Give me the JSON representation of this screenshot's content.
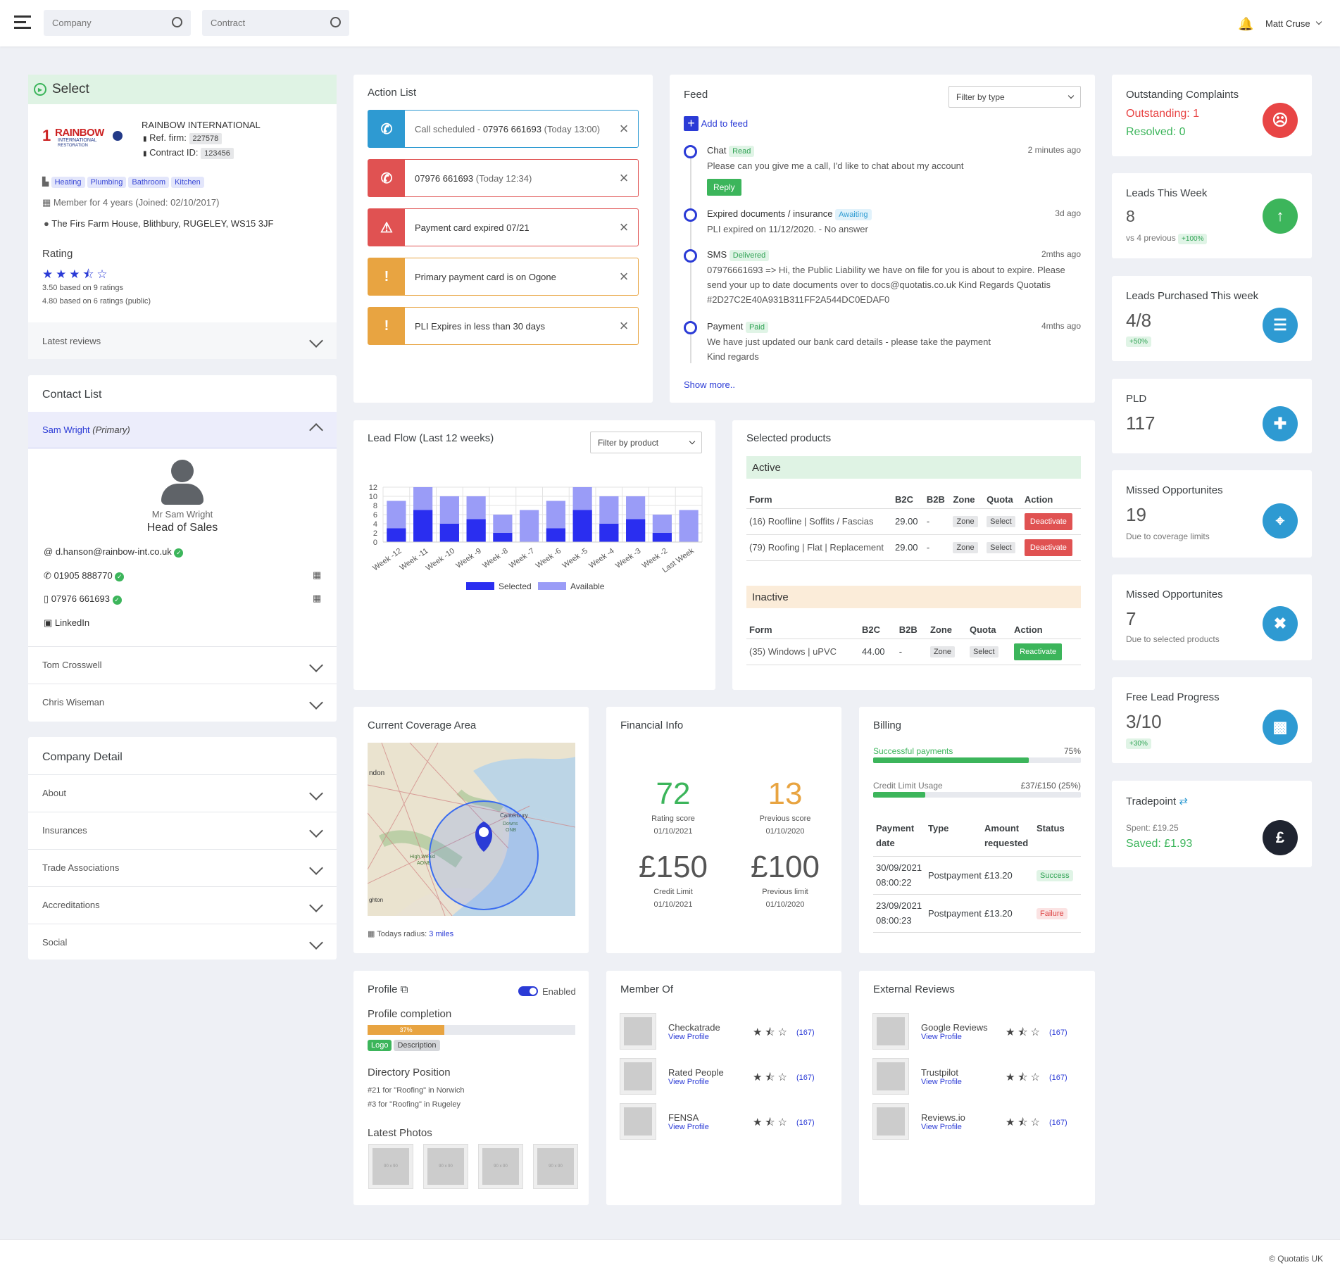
{
  "header": {
    "company_placeholder": "Company",
    "contract_placeholder": "Contract",
    "user": "Matt Cruse"
  },
  "select": {
    "title": "Select",
    "company": "RAINBOW INTERNATIONAL",
    "ref_label": "Ref. firm:",
    "ref": "227578",
    "contract_label": "Contract ID:",
    "contract": "123456",
    "tags": [
      "Heating",
      "Plumbing",
      "Bathroom",
      "Kitchen"
    ],
    "member": "Member for 4 years (Joined: 02/10/2017)",
    "address": "The Firs Farm House, Blithbury, RUGELEY, WS15 3JF",
    "rating_title": "Rating",
    "rating_stars": 3.5,
    "r1": "3.50 based on 9 ratings",
    "r2": "4.80 based on 6 ratings (public)",
    "latest_reviews": "Latest reviews",
    "logo_text": "RAINBOW",
    "logo_sub": "INTERNATIONAL",
    "logo_sub2": "RESTORATION"
  },
  "contacts": {
    "title": "Contact List",
    "primary_name": "Sam Wright",
    "primary_tag": "(Primary)",
    "person": "Mr Sam Wright",
    "role": "Head of Sales",
    "email": "d.hanson@rainbow-int.co.uk",
    "phone1": "01905 888770",
    "phone2": "07976 661693",
    "linkedin": "LinkedIn",
    "others": [
      "Tom Crosswell",
      "Chris Wiseman"
    ]
  },
  "company_detail": {
    "title": "Company Detail",
    "items": [
      "About",
      "Insurances",
      "Trade Associations",
      "Accreditations",
      "Social"
    ]
  },
  "action_list": {
    "title": "Action List",
    "items": [
      {
        "text": "Call scheduled - ",
        "bold": "07976 661693",
        "muted": "(Today 13:00)"
      },
      {
        "text": "",
        "bold": "07976 661693",
        "muted": "(Today 12:34)"
      },
      {
        "text": "Payment card expired 07/21",
        "bold": "",
        "muted": ""
      },
      {
        "text": "Primary payment card is on Ogone",
        "bold": "",
        "muted": ""
      },
      {
        "text": "PLI Expires in less than 30 days",
        "bold": "",
        "muted": ""
      }
    ]
  },
  "feed": {
    "title": "Feed",
    "filter": "Filter by type",
    "add": "Add to feed",
    "show_more": "Show more..",
    "items": [
      {
        "title": "Chat",
        "tag": "Read",
        "time": "2 minutes ago",
        "body": "Please can you give me a call, I'd like to chat about my account",
        "reply": "Reply"
      },
      {
        "title": "Expired documents / insurance",
        "tag": "Awaiting",
        "time": "3d ago",
        "body": "PLI expired on 11/12/2020. - No answer"
      },
      {
        "title": "SMS",
        "tag": "Delivered",
        "time": "2mths ago",
        "body": "07976661693 => Hi, the Public Liability we have on file for you is about to expire. Please send your up to date documents over to docs@quotatis.co.uk Kind Regards Quotatis #2D27C2E40A931B311FF2A544DC0EDAF0"
      },
      {
        "title": "Payment",
        "tag": "Paid",
        "time": "4mths ago",
        "body": "We have just updated our bank card details - please take the payment",
        "body2": "Kind regards"
      }
    ]
  },
  "stats": [
    {
      "title": "Outstanding Complaints",
      "l1": "Outstanding: 1",
      "l2": "Resolved: 0",
      "color": "#e84545"
    },
    {
      "title": "Leads This Week",
      "value": "8",
      "sub": "vs 4 previous",
      "tag": "+100%",
      "color": "#3cb55b"
    },
    {
      "title": "Leads Purchased This week",
      "value": "4/8",
      "tag": "+50%",
      "color": "#2e9ad2"
    },
    {
      "title": "PLD",
      "value": "117",
      "color": "#2e9ad2"
    },
    {
      "title": "Missed Opportunites",
      "value": "19",
      "sub": "Due to coverage limits",
      "color": "#2e9ad2"
    },
    {
      "title": "Missed Opportunites",
      "value": "7",
      "sub": "Due to selected products",
      "color": "#2e9ad2"
    },
    {
      "title": "Free Lead Progress",
      "value": "3/10",
      "tag": "+30%",
      "color": "#2e9ad2"
    },
    {
      "title": "Tradepoint",
      "sub": "Spent: £19.25",
      "l2": "Saved: £1.93",
      "color": "#1f2430",
      "icon": "£"
    }
  ],
  "chart_data": {
    "type": "bar",
    "title": "Lead Flow (Last 12 weeks)",
    "filter": "Filter by product",
    "categories": [
      "Week -12",
      "Week -11",
      "Week -10",
      "Week -9",
      "Week -8",
      "Week -7",
      "Week -6",
      "Week -5",
      "Week -4",
      "Week -3",
      "Week -2",
      "Last Week"
    ],
    "series": [
      {
        "name": "Selected",
        "values": [
          3,
          7,
          4,
          5,
          2,
          0,
          3,
          7,
          4,
          5,
          2,
          0
        ],
        "color": "#2a2ef0"
      },
      {
        "name": "Available",
        "values": [
          9,
          12,
          10,
          10,
          6,
          7,
          9,
          12,
          10,
          10,
          6,
          7
        ],
        "color": "#9a9cf7"
      }
    ],
    "ylim": [
      0,
      12
    ],
    "yticks": [
      0,
      2,
      4,
      6,
      8,
      10,
      12
    ],
    "stacked": "overlay"
  },
  "products": {
    "title": "Selected products",
    "active": "Active",
    "inactive": "Inactive",
    "headers": [
      "Form",
      "B2C",
      "B2B",
      "Zone",
      "Quota",
      "Action"
    ],
    "active_rows": [
      [
        "(16) Roofline | Soffits / Fascias",
        "29.00",
        "-",
        "Zone",
        "Select",
        "Deactivate"
      ],
      [
        "(79) Roofing | Flat | Replacement",
        "29.00",
        "-",
        "Zone",
        "Select",
        "Deactivate"
      ]
    ],
    "inactive_rows": [
      [
        "(35) Windows | uPVC",
        "44.00",
        "-",
        "Zone",
        "Select",
        "Reactivate"
      ]
    ]
  },
  "coverage": {
    "title": "Current Coverage Area",
    "radius_label": "Todays radius:",
    "radius": "3 miles",
    "map_labels": [
      "ndon",
      "Canterbury",
      "Downs",
      "ONB",
      "High Weald",
      "AONB",
      "ghton"
    ]
  },
  "financial": {
    "title": "Financial Info",
    "rating": "72",
    "rating_label": "Rating score",
    "rating_date": "01/10/2021",
    "prev": "13",
    "prev_label": "Previous score",
    "prev_date": "01/10/2020",
    "credit": "£150",
    "credit_label": "Credit Limit",
    "credit_date": "01/10/2021",
    "prev_limit": "£100",
    "prev_limit_label": "Previous limit",
    "prev_limit_date": "01/10/2020"
  },
  "billing": {
    "title": "Billing",
    "succ_label": "Successful payments",
    "succ_val": "75%",
    "succ_pct": 0.75,
    "credit_label": "Credit Limit Usage",
    "credit_val": "£37/£150 (25%)",
    "credit_pct": 0.25,
    "headers": [
      "Payment date",
      "Type",
      "Amount requested",
      "Status"
    ],
    "rows": [
      [
        "30/09/2021 08:00:22",
        "Postpayment",
        "£13.20",
        "Success"
      ],
      [
        "23/09/2021 08:00:23",
        "Postpayment",
        "£13.20",
        "Failure"
      ]
    ]
  },
  "profile": {
    "title": "Profile",
    "enabled": "Enabled",
    "completion": "Profile completion",
    "pct": "37%",
    "pct_val": 0.37,
    "tags": [
      "Logo",
      "Description"
    ],
    "dir_title": "Directory Position",
    "dir1": "#21 for \"Roofing\" in Norwich",
    "dir2": "#3 for \"Roofing\" in Rugeley",
    "photos_title": "Latest Photos",
    "ph": "90 x 90"
  },
  "member_of": {
    "title": "Member Of",
    "items": [
      {
        "name": "Checkatrade",
        "link": "View Profile",
        "count": "(167)"
      },
      {
        "name": "Rated People",
        "link": "View Profile",
        "count": "(167)"
      },
      {
        "name": "FENSA",
        "link": "View Profile",
        "count": "(167)"
      }
    ]
  },
  "external": {
    "title": "External Reviews",
    "items": [
      {
        "name": "Google Reviews",
        "link": "View Profile",
        "count": "(167)"
      },
      {
        "name": "Trustpilot",
        "link": "View Profile",
        "count": "(167)"
      },
      {
        "name": "Reviews.io",
        "link": "View Profile",
        "count": "(167)"
      }
    ]
  },
  "footer": "© Quotatis UK"
}
